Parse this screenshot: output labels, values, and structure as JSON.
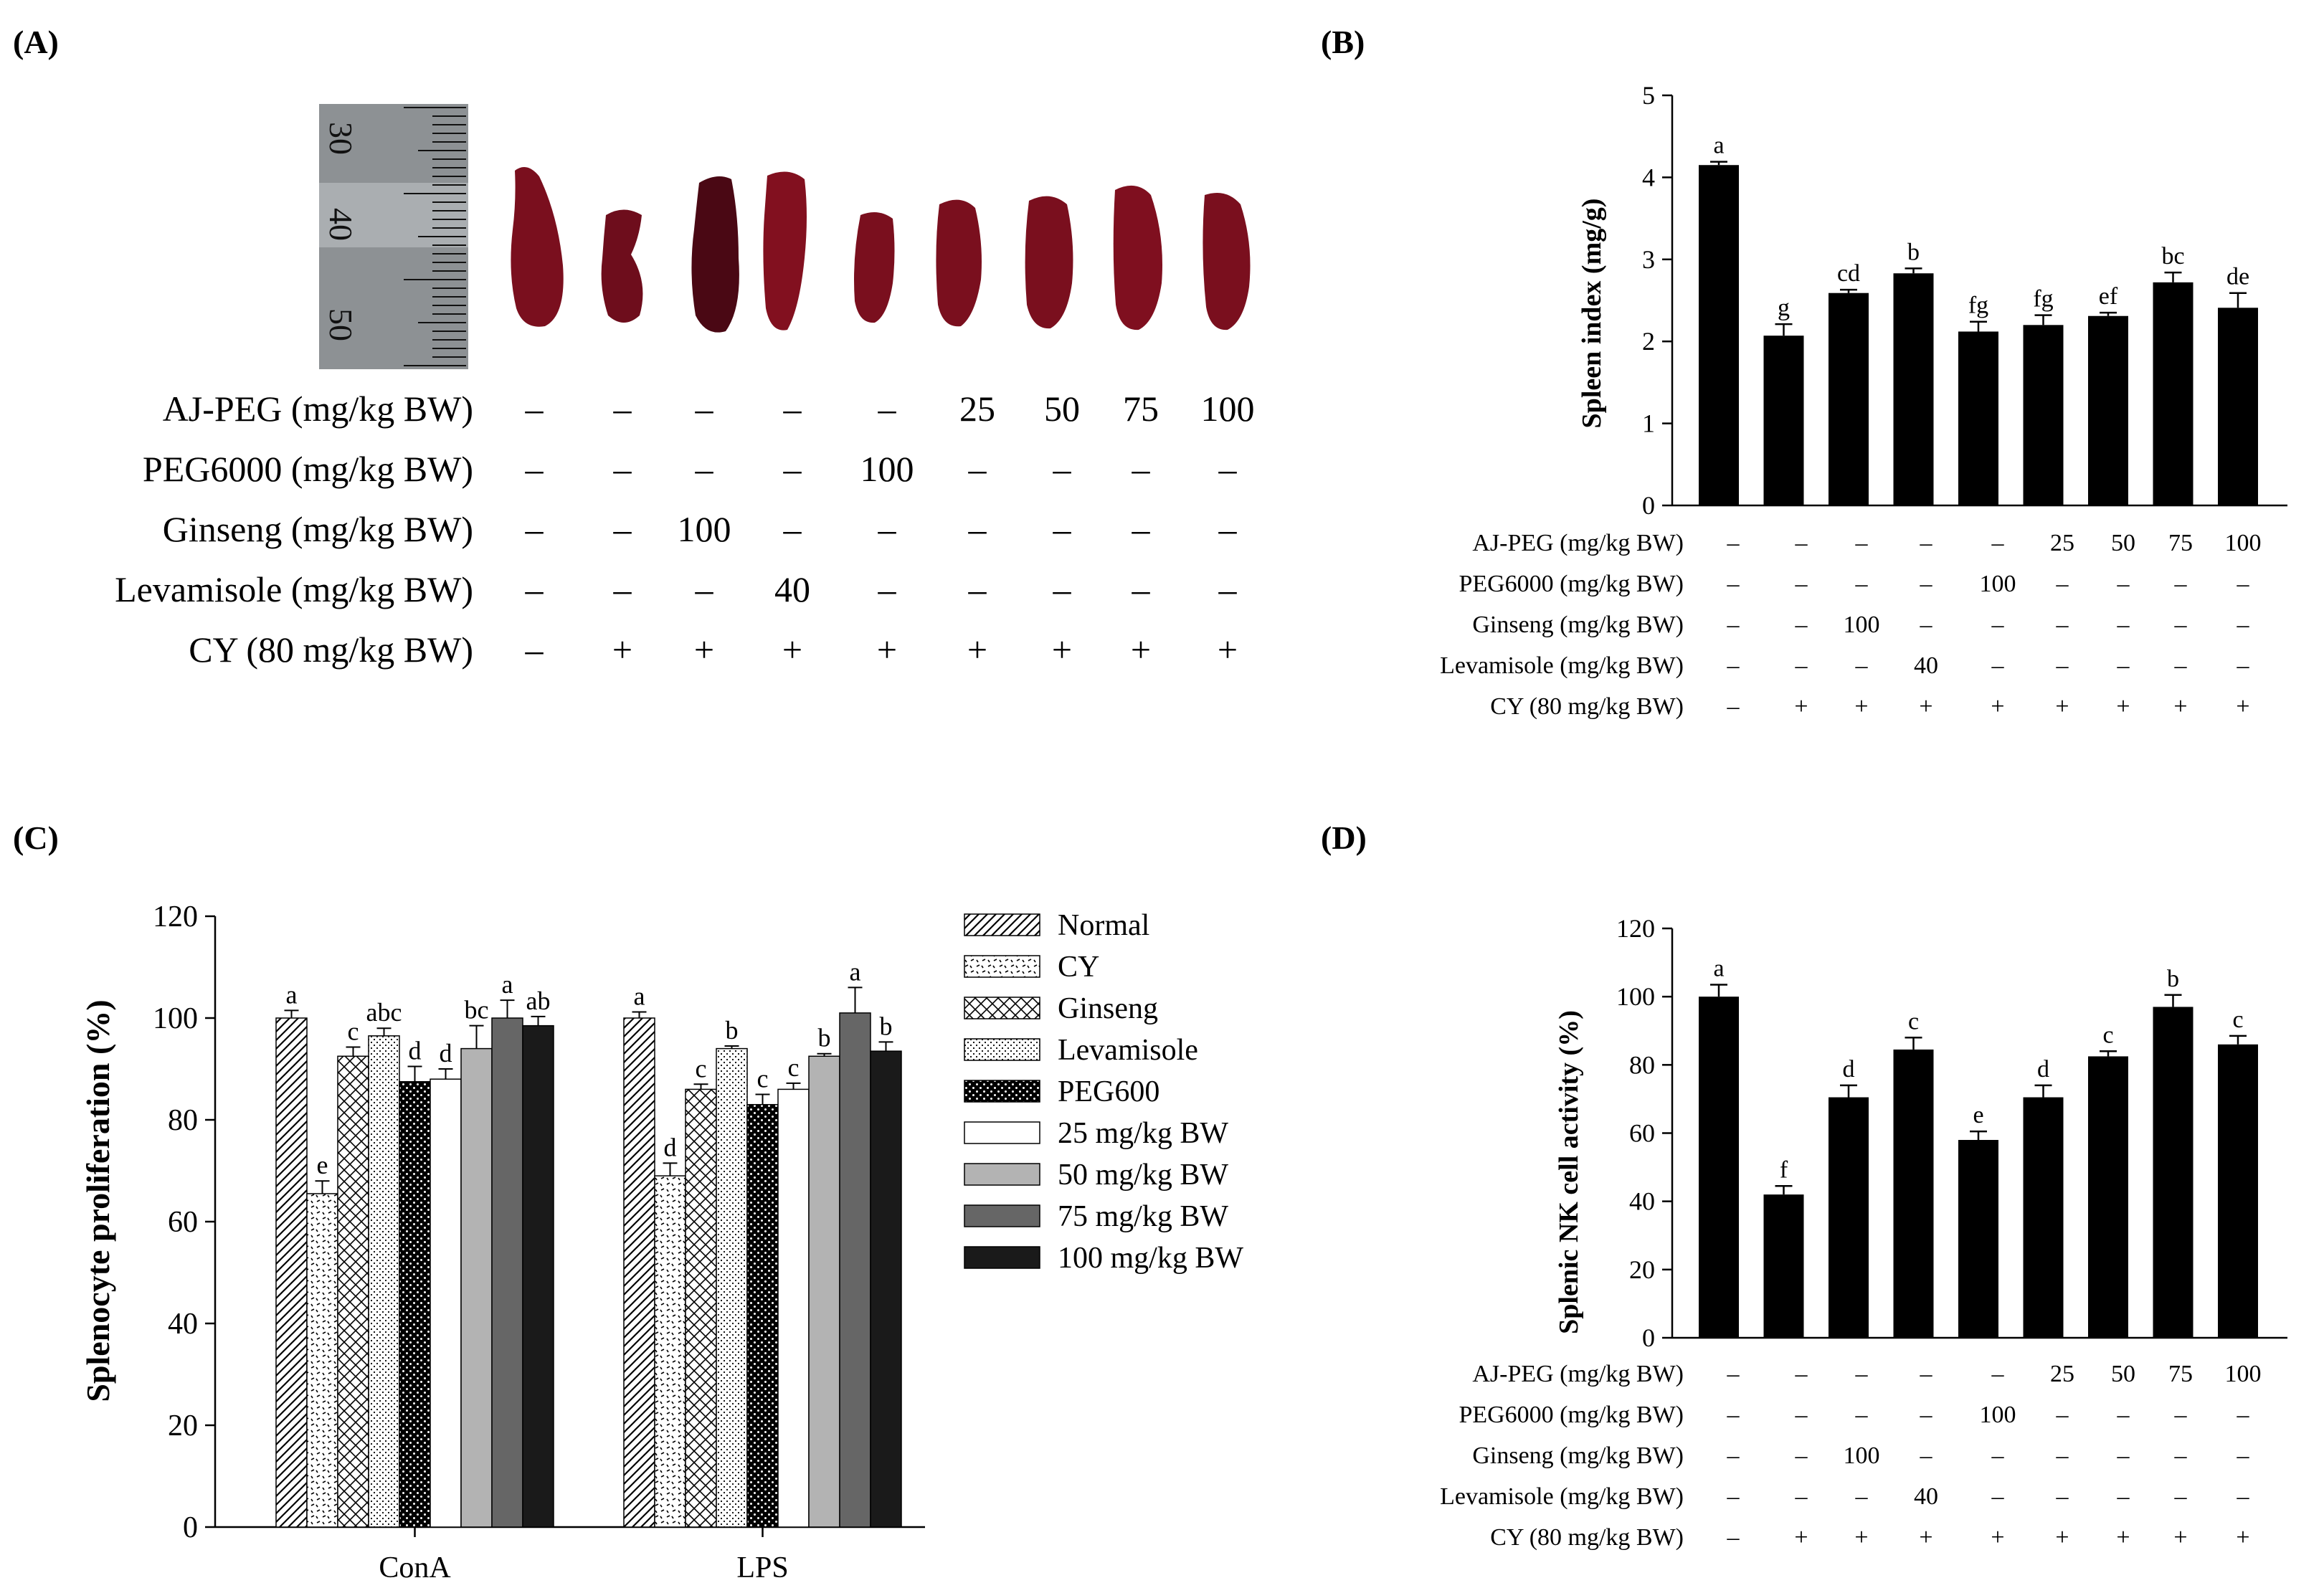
{
  "panel_labels": {
    "a": "(A)",
    "b": "(B)",
    "c": "(C)",
    "d": "(D)"
  },
  "treatment_labels": [
    "AJ-PEG (mg/kg BW)",
    "PEG6000 (mg/kg BW)",
    "Ginseng (mg/kg BW)",
    "Levamisole (mg/kg BW)",
    "CY (80 mg/kg BW)"
  ],
  "treatment_matrix": [
    [
      "–",
      "–",
      "–",
      "–",
      "–",
      "25",
      "50",
      "75",
      "100"
    ],
    [
      "–",
      "–",
      "–",
      "–",
      "100",
      "–",
      "–",
      "–",
      "–"
    ],
    [
      "–",
      "–",
      "100",
      "–",
      "–",
      "–",
      "–",
      "–",
      "–"
    ],
    [
      "–",
      "–",
      "–",
      "40",
      "–",
      "–",
      "–",
      "–",
      "–"
    ],
    [
      "–",
      "+",
      "+",
      "+",
      "+",
      "+",
      "+",
      "+",
      "+"
    ]
  ],
  "photo": {
    "ruler_labels": [
      "30",
      "40",
      "50"
    ],
    "colors": {
      "spleen": "#7a0f1e",
      "ruler_bg": "#8d9194"
    }
  },
  "chart_data": [
    {
      "panel": "B",
      "type": "bar",
      "ylabel": "Spleen index (mg/g)",
      "ylim": [
        0,
        5
      ],
      "yticks": [
        0,
        1,
        2,
        3,
        4,
        5
      ],
      "values": [
        4.15,
        2.07,
        2.59,
        2.83,
        2.12,
        2.2,
        2.31,
        2.72,
        2.41
      ],
      "errors": [
        0.04,
        0.14,
        0.04,
        0.06,
        0.12,
        0.12,
        0.04,
        0.12,
        0.18
      ],
      "letters": [
        "a",
        "g",
        "cd",
        "b",
        "fg",
        "fg",
        "ef",
        "bc",
        "de"
      ],
      "bar_color": "#000000"
    },
    {
      "panel": "C",
      "type": "bar",
      "ylabel": "Splenocyte proliferation (%)",
      "ylim": [
        0,
        120
      ],
      "yticks": [
        0,
        20,
        40,
        60,
        80,
        100,
        120
      ],
      "categories": [
        "ConA",
        "LPS"
      ],
      "series": [
        {
          "name": "Normal",
          "values": [
            100,
            100
          ],
          "errors": [
            1.5,
            1.2
          ],
          "letters": [
            "a",
            "a"
          ],
          "pattern": "hatch"
        },
        {
          "name": "CY",
          "values": [
            65.5,
            69
          ],
          "errors": [
            2.5,
            2.5
          ],
          "letters": [
            "e",
            "d"
          ],
          "pattern": "dash"
        },
        {
          "name": "Ginseng",
          "values": [
            92.5,
            86
          ],
          "errors": [
            1.8,
            1.0
          ],
          "letters": [
            "c",
            "c"
          ],
          "pattern": "cross"
        },
        {
          "name": "Levamisole",
          "values": [
            96.5,
            94
          ],
          "errors": [
            1.5,
            0.5
          ],
          "letters": [
            "abc",
            "b"
          ],
          "pattern": "dots"
        },
        {
          "name": "PEG600",
          "values": [
            87.5,
            83
          ],
          "errors": [
            3.0,
            2.0
          ],
          "letters": [
            "d",
            "c"
          ],
          "pattern": "blackdots"
        },
        {
          "name": "25 mg/kg BW",
          "values": [
            88,
            86
          ],
          "errors": [
            2.0,
            1.2
          ],
          "letters": [
            "d",
            "c"
          ],
          "fill": "#ffffff"
        },
        {
          "name": "50 mg/kg BW",
          "values": [
            94,
            92.5
          ],
          "errors": [
            4.5,
            0.5
          ],
          "letters": [
            "bc",
            "b"
          ],
          "fill": "#b3b3b3"
        },
        {
          "name": "75 mg/kg BW",
          "values": [
            100,
            101
          ],
          "errors": [
            3.5,
            5.0
          ],
          "letters": [
            "a",
            "a"
          ],
          "fill": "#666666"
        },
        {
          "name": "100 mg/kg BW",
          "values": [
            98.5,
            93.5
          ],
          "errors": [
            1.8,
            1.8
          ],
          "letters": [
            "ab",
            "b"
          ],
          "fill": "#1a1a1a"
        }
      ]
    },
    {
      "panel": "D",
      "type": "bar",
      "ylabel": "Splenic NK cell activity (%)",
      "ylim": [
        0,
        120
      ],
      "yticks": [
        0,
        20,
        40,
        60,
        80,
        100,
        120
      ],
      "values": [
        100,
        42,
        70.5,
        84.5,
        58,
        70.5,
        82.5,
        97,
        86
      ],
      "errors": [
        3.5,
        2.5,
        3.5,
        3.5,
        2.5,
        3.5,
        1.5,
        3.5,
        2.5
      ],
      "letters": [
        "a",
        "f",
        "d",
        "c",
        "e",
        "d",
        "c",
        "b",
        "c"
      ],
      "bar_color": "#000000"
    }
  ]
}
